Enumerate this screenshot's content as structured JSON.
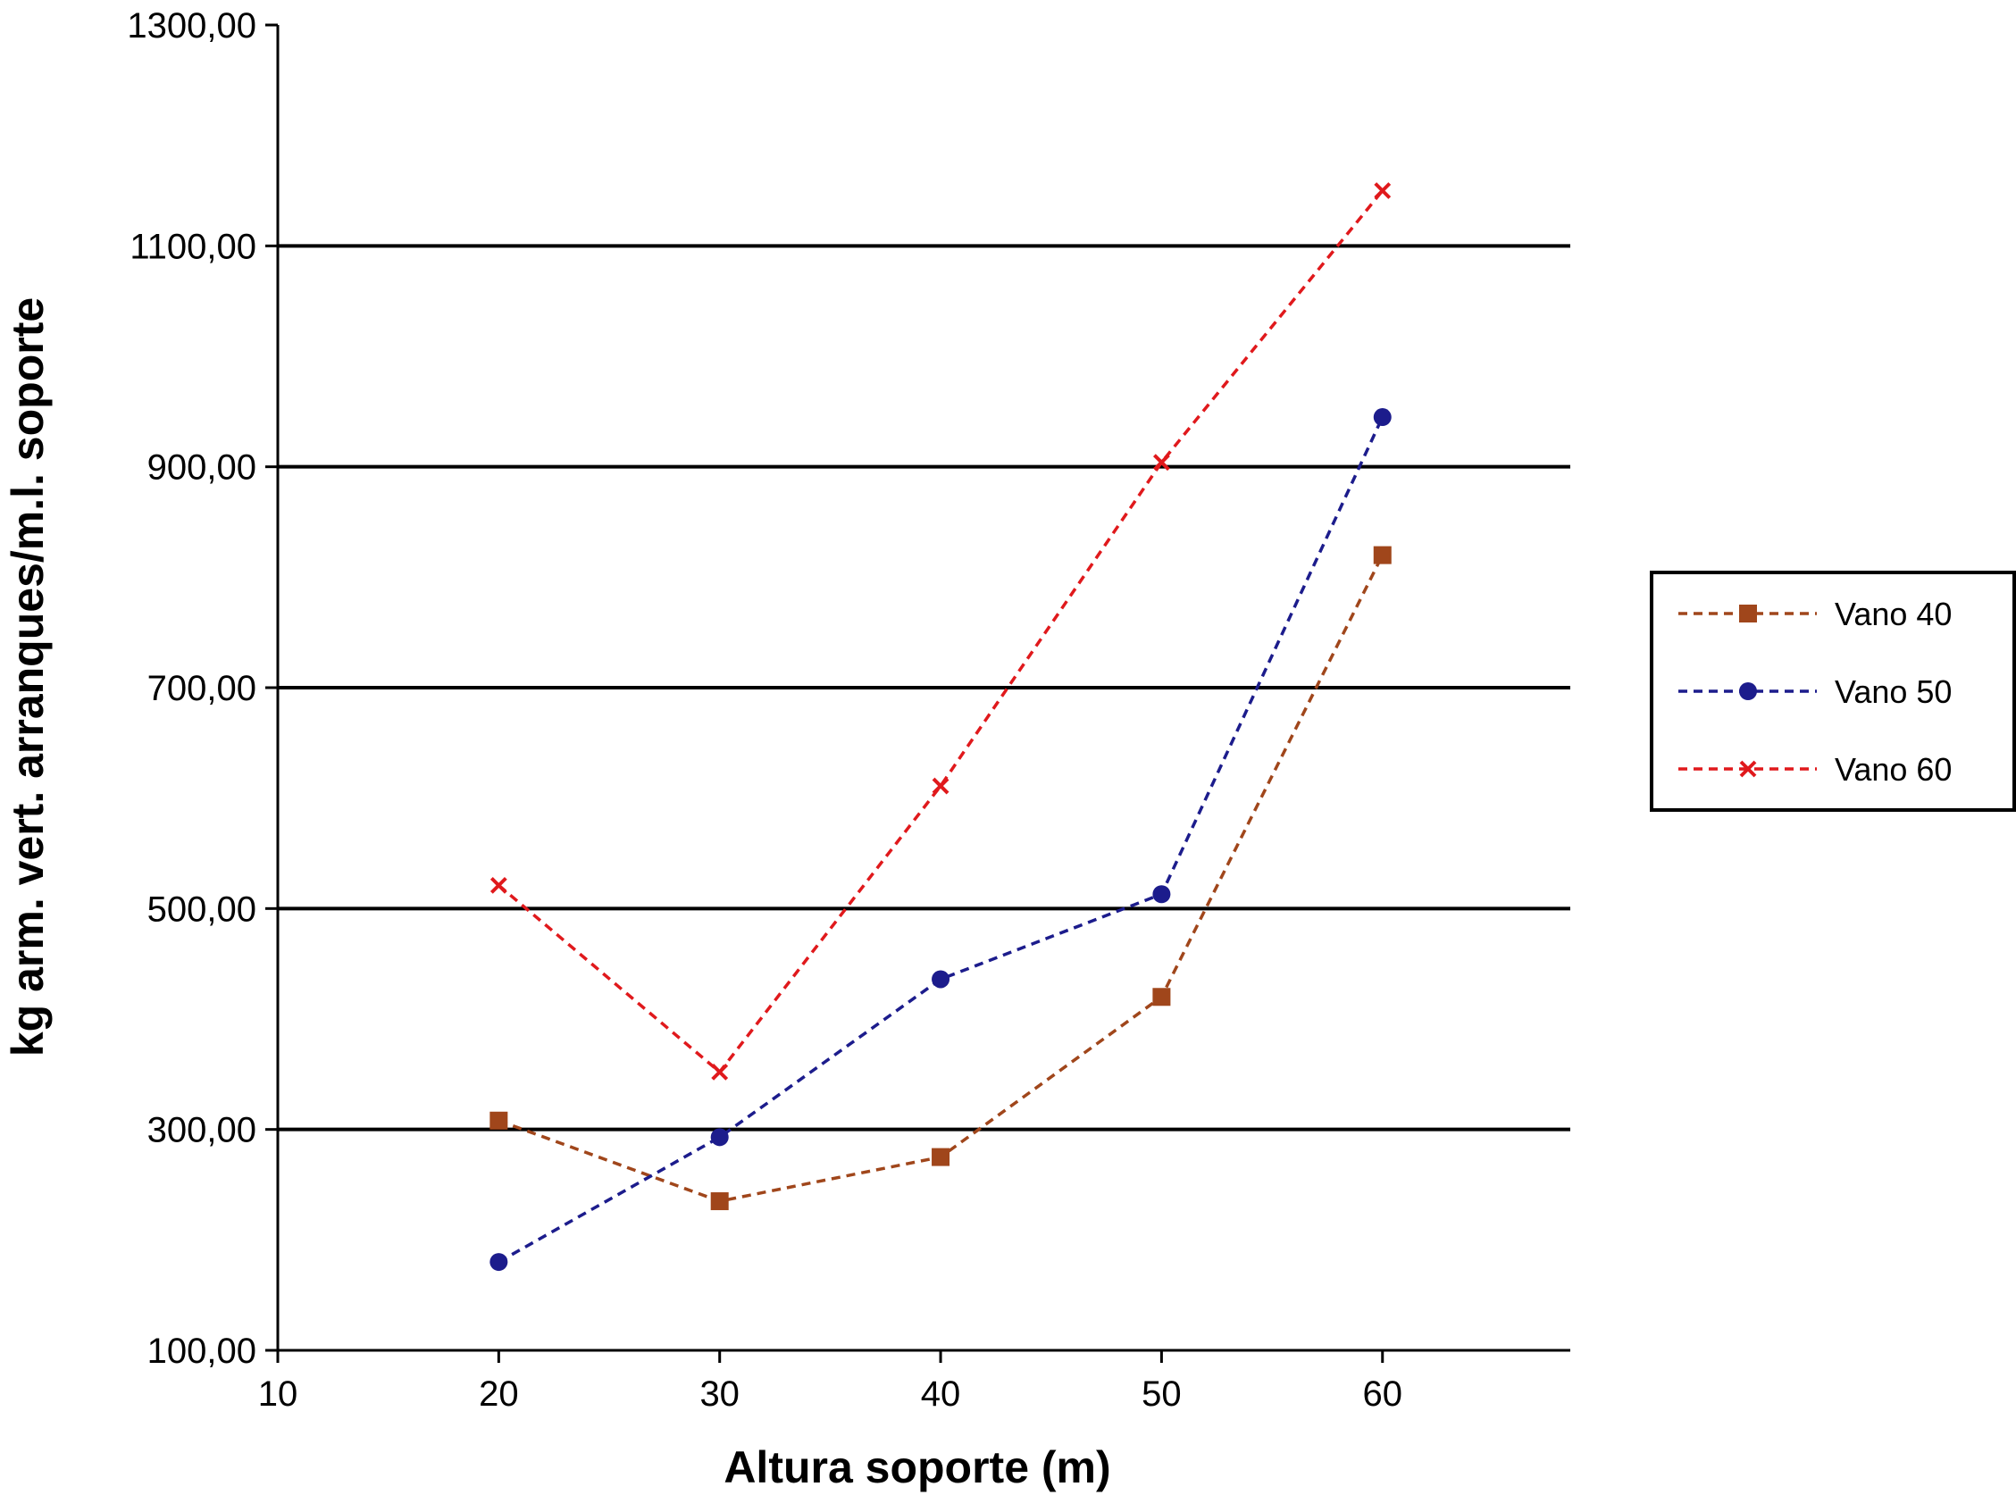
{
  "chart_data": {
    "type": "line",
    "title": "",
    "xlabel": "Altura soporte (m)",
    "ylabel": "kg arm. vert. arranques/m.l. soporte",
    "xlim": [
      10,
      68.5
    ],
    "ylim": [
      100,
      1300
    ],
    "x_ticks": [
      {
        "value": 10,
        "label": "10"
      },
      {
        "value": 20,
        "label": "20"
      },
      {
        "value": 30,
        "label": "30"
      },
      {
        "value": 40,
        "label": "40"
      },
      {
        "value": 50,
        "label": "50"
      },
      {
        "value": 60,
        "label": "60"
      }
    ],
    "y_ticks": [
      {
        "value": 100,
        "label": "100,00"
      },
      {
        "value": 300,
        "label": "300,00"
      },
      {
        "value": 500,
        "label": "500,00"
      },
      {
        "value": 700,
        "label": "700,00"
      },
      {
        "value": 900,
        "label": "900,00"
      },
      {
        "value": 1100,
        "label": "1100,00"
      },
      {
        "value": 1300,
        "label": "1300,00"
      }
    ],
    "grid": "horizontal major lines",
    "legend_position": "right",
    "x": [
      20,
      30,
      40,
      50,
      60
    ],
    "series": [
      {
        "name": "Vano 40",
        "color": "#A0461B",
        "marker": "square",
        "values": [
          308,
          235,
          275,
          420,
          820
        ]
      },
      {
        "name": "Vano 50",
        "color": "#1C1C8C",
        "marker": "circle",
        "values": [
          180,
          293,
          436,
          513,
          945
        ]
      },
      {
        "name": "Vano 60",
        "color": "#E0191C",
        "marker": "x",
        "values": [
          521,
          352,
          611,
          904,
          1150
        ]
      }
    ]
  }
}
